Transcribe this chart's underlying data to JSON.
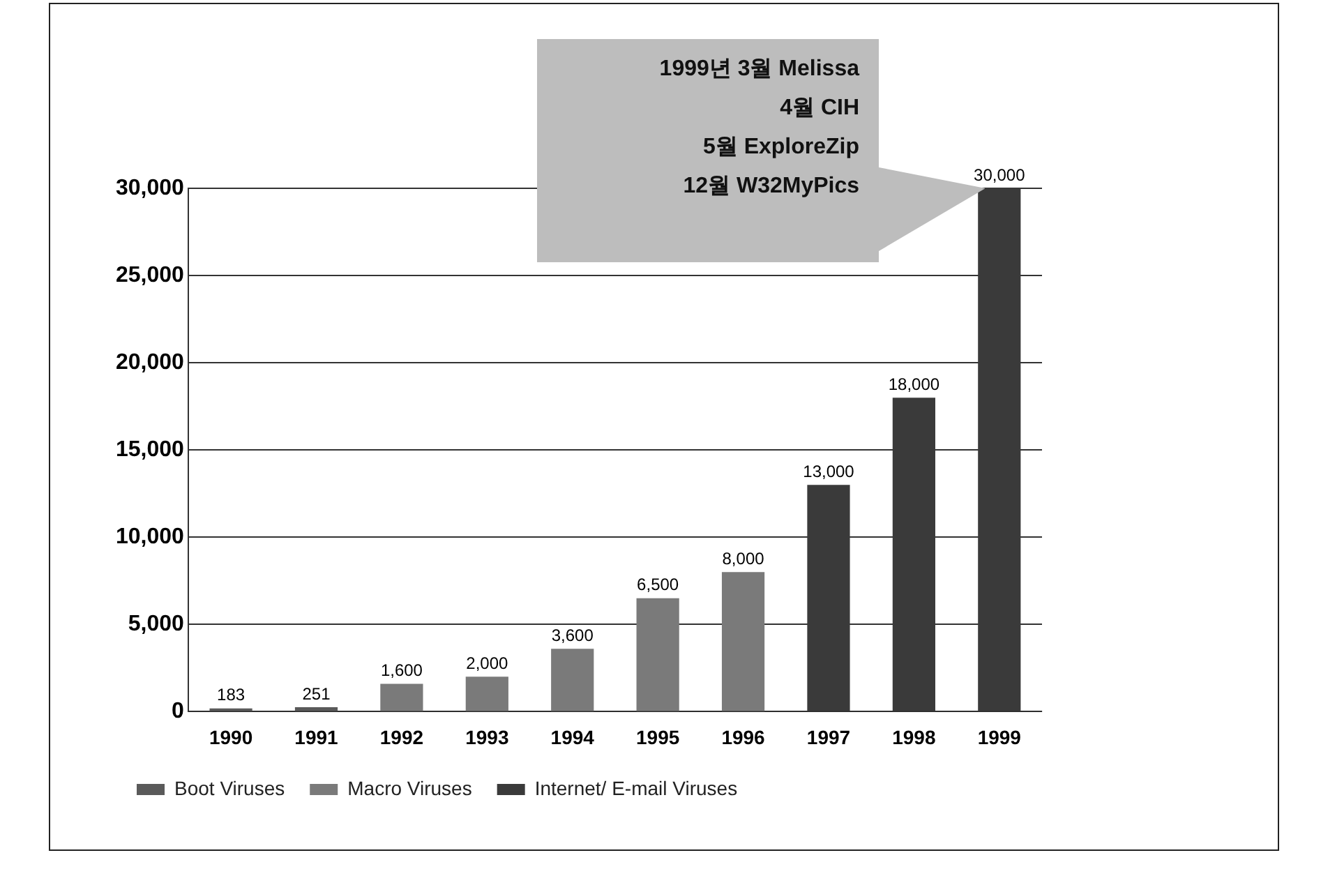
{
  "chart_data": {
    "type": "bar",
    "stacked": true,
    "categories": [
      "1990",
      "1991",
      "1992",
      "1993",
      "1994",
      "1995",
      "1996",
      "1997",
      "1998",
      "1999"
    ],
    "series": [
      {
        "name": "Boot Viruses",
        "color": "#5a5a5a",
        "values": [
          183,
          251,
          null,
          null,
          null,
          null,
          null,
          null,
          null,
          null
        ],
        "value_labels": [
          "183",
          "251",
          null,
          null,
          null,
          null,
          null,
          null,
          null,
          null
        ]
      },
      {
        "name": "Macro Viruses",
        "color": "#7a7a7a",
        "values": [
          null,
          null,
          1600,
          2000,
          3600,
          6500,
          8000,
          null,
          null,
          null
        ],
        "value_labels": [
          null,
          null,
          "1,600",
          "2,000",
          "3,600",
          "6,500",
          "8,000",
          null,
          null,
          null
        ]
      },
      {
        "name": "Internet/ E-mail Viruses",
        "color": "#3a3a3a",
        "values": [
          null,
          null,
          null,
          null,
          null,
          null,
          null,
          13000,
          18000,
          30000
        ],
        "value_labels": [
          null,
          null,
          null,
          null,
          null,
          null,
          null,
          "13,000",
          "18,000",
          "30,000"
        ]
      }
    ],
    "ylim": [
      0,
      30000
    ],
    "yticks": [
      0,
      {
        "value": 5000,
        "label": "5,000"
      },
      {
        "value": 10000,
        "label": "10,000"
      },
      {
        "value": 15000,
        "label": "15,000"
      },
      {
        "value": 20000,
        "label": "20,000"
      },
      {
        "value": 25000,
        "label": "25,000"
      },
      {
        "value": 30000,
        "label": "30,000"
      }
    ],
    "grid": "y",
    "legend": "bottom",
    "annotations": [
      "1999년 3월 Melissa",
      "4월 CIH",
      "5월 ExploreZip",
      "12월 W32MyPics"
    ]
  }
}
